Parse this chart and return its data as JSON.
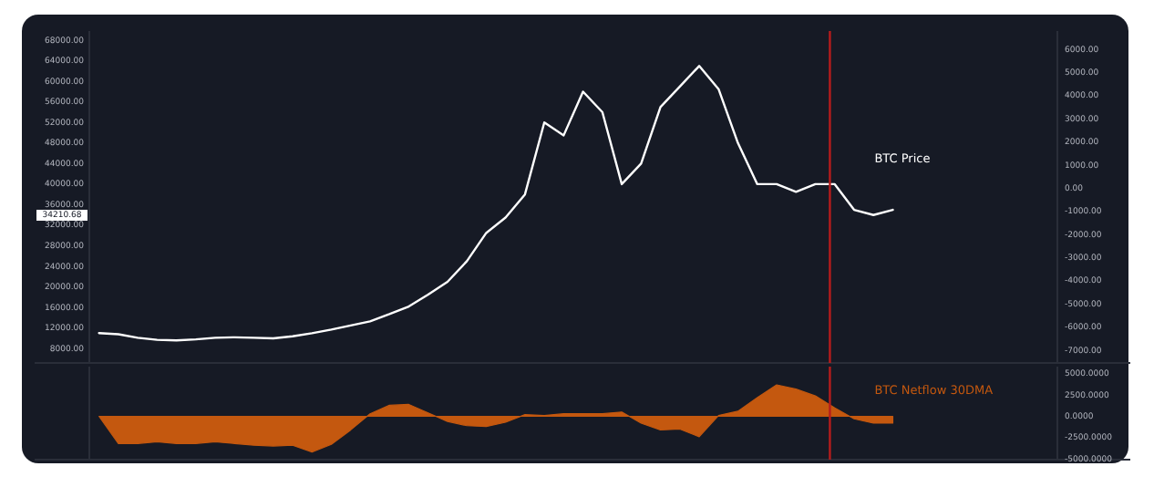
{
  "chart_data": [
    {
      "type": "line",
      "categories": [
        null,
        null,
        null,
        null,
        null,
        null,
        null,
        null,
        null,
        null,
        null,
        null,
        null,
        null,
        null,
        null,
        null,
        null,
        null,
        null,
        null,
        null,
        null,
        null,
        null,
        null,
        null,
        null,
        null,
        null,
        null,
        null,
        null,
        null,
        null,
        null,
        null,
        null,
        null,
        null,
        null,
        null,
        null,
        null,
        null,
        null,
        null,
        null,
        null,
        null
      ],
      "series": [
        {
          "name": "BTC Price",
          "color": "#ffffff",
          "values": [
            11000,
            10800,
            10100,
            9700,
            9600,
            9800,
            10100,
            10200,
            10100,
            10000,
            10400,
            11000,
            11700,
            12500,
            13300,
            14700,
            16200,
            18500,
            21000,
            25000,
            30500,
            33500,
            38000,
            52000,
            49500,
            58000,
            54000,
            40000,
            44000,
            55000,
            59000,
            63000,
            58500,
            48000,
            40000,
            40000,
            38500,
            40000,
            40000,
            35000,
            34000,
            35000,
            null,
            null,
            null,
            null,
            null,
            null,
            null,
            null
          ]
        }
      ],
      "ylim": [
        5200,
        69800
      ],
      "yticks": [
        {
          "value": 8000,
          "label": "8000.00"
        },
        {
          "value": 12000,
          "label": "12000.00"
        },
        {
          "value": 16000,
          "label": "16000.00"
        },
        {
          "value": 20000,
          "label": "20000.00"
        },
        {
          "value": 24000,
          "label": "24000.00"
        },
        {
          "value": 28000,
          "label": "28000.00"
        },
        {
          "value": 32000,
          "label": "32000.00"
        },
        {
          "value": 36000,
          "label": "36000.00"
        },
        {
          "value": 40000,
          "label": "40000.00"
        },
        {
          "value": 44000,
          "label": "44000.00"
        },
        {
          "value": 48000,
          "label": "48000.00"
        },
        {
          "value": 52000,
          "label": "52000.00"
        },
        {
          "value": 56000,
          "label": "56000.00"
        },
        {
          "value": 60000,
          "label": "60000.00"
        },
        {
          "value": 64000,
          "label": "64000.00"
        },
        {
          "value": 68000,
          "label": "68000.00"
        }
      ],
      "y2lim": [
        -7550,
        6800
      ],
      "y2ticks": [
        {
          "value": 6000,
          "label": "6000.00"
        },
        {
          "value": 5000,
          "label": "5000.00"
        },
        {
          "value": 4000,
          "label": "4000.00"
        },
        {
          "value": 3000,
          "label": "3000.00"
        },
        {
          "value": 2000,
          "label": "2000.00"
        },
        {
          "value": 1000,
          "label": "1000.00"
        },
        {
          "value": 0,
          "label": "0.00"
        },
        {
          "value": -1000,
          "label": "-1000.00"
        },
        {
          "value": -2000,
          "label": "-2000.00"
        },
        {
          "value": -3000,
          "label": "-3000.00"
        },
        {
          "value": -4000,
          "label": "-4000.00"
        },
        {
          "value": -5000,
          "label": "-5000.00"
        },
        {
          "value": -6000,
          "label": "-6000.00"
        },
        {
          "value": -7000,
          "label": "-7000.00"
        }
      ],
      "annotations": [
        "34210.68"
      ],
      "tick_labels": "y",
      "grid": false
    },
    {
      "type": "area",
      "categories": [
        null,
        null,
        null,
        null,
        null,
        null,
        null,
        null,
        null,
        null,
        null,
        null,
        null,
        null,
        null,
        null,
        null,
        null,
        null,
        null,
        null,
        null,
        null,
        null,
        null,
        null,
        null,
        null,
        null,
        null,
        null,
        null,
        null,
        null,
        null,
        null,
        null,
        null,
        null,
        null,
        null,
        null,
        null,
        null,
        null,
        null,
        null,
        null,
        null,
        null
      ],
      "series": [
        {
          "name": "BTC Netflow 30DMA",
          "color": "#c4580f",
          "values": [
            0,
            -3200,
            -3200,
            -3000,
            -3200,
            -3200,
            -3000,
            -3200,
            -3400,
            -3500,
            -3400,
            -4200,
            -3300,
            -1600,
            300,
            1300,
            1400,
            400,
            -600,
            -1100,
            -1200,
            -700,
            200,
            100,
            300,
            300,
            300,
            500,
            -800,
            -1600,
            -1500,
            -2400,
            100,
            600,
            2200,
            3700,
            3200,
            2400,
            1000,
            -300,
            -800,
            -800,
            null,
            null,
            null,
            null,
            null,
            null,
            null,
            null
          ]
        }
      ],
      "ylim": [
        -5100,
        5850
      ],
      "yticks": [
        {
          "value": 5000,
          "label": "5000.0000"
        },
        {
          "value": 2500,
          "label": "2500.0000"
        },
        {
          "value": 0,
          "label": "0.0000"
        },
        {
          "value": -2500,
          "label": "-2500.0000"
        },
        {
          "value": -5000,
          "label": "-5000.0000"
        }
      ],
      "tick_labels": "y",
      "grid": false
    }
  ]
}
